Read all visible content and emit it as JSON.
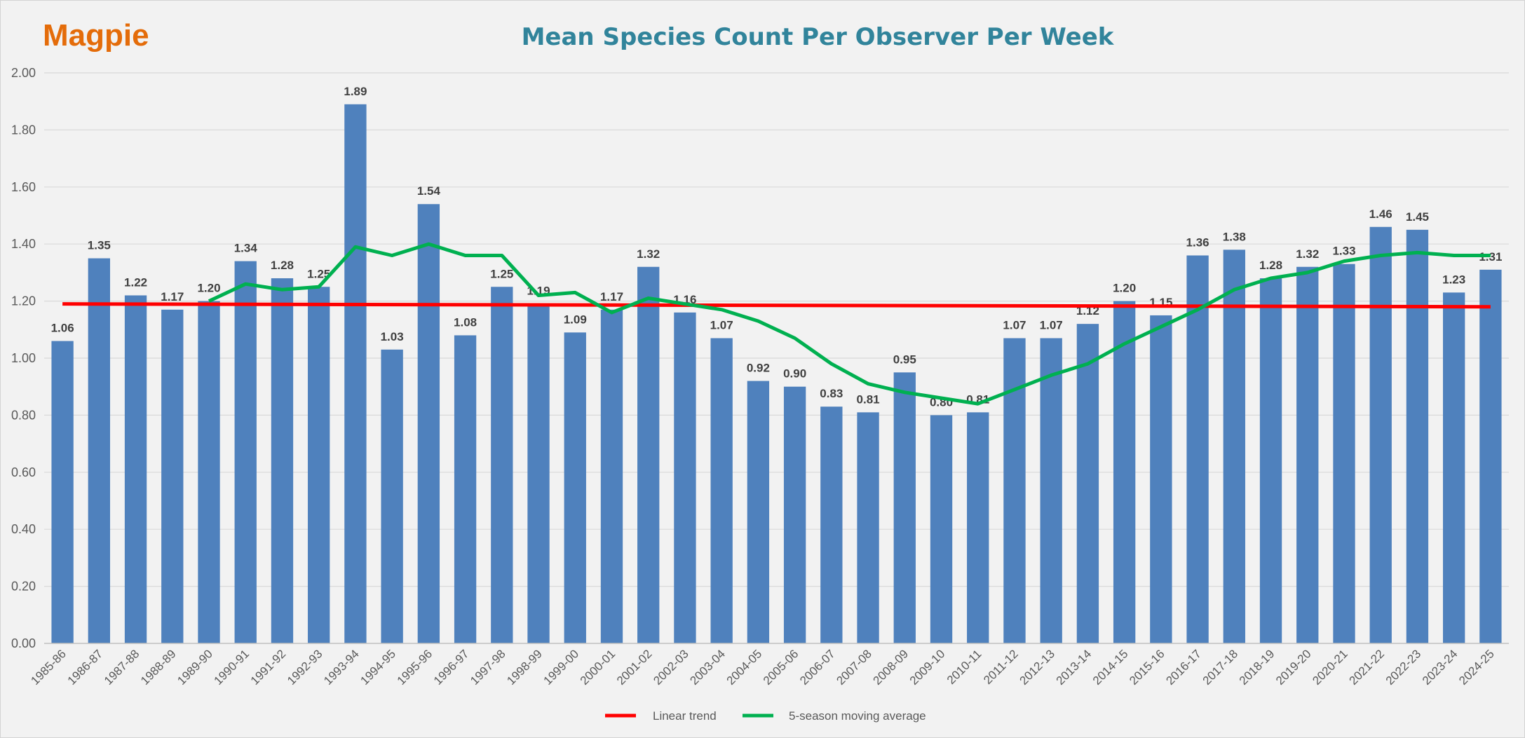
{
  "species_label": "Magpie",
  "chart_data": {
    "type": "bar",
    "title": "Mean Species Count Per Observer Per Week",
    "xlabel": "",
    "ylabel": "",
    "ylim": [
      0,
      2
    ],
    "ytick_step": 0.2,
    "grid": true,
    "legend_position": "bottom-center",
    "categories": [
      "1985-86",
      "1986-87",
      "1987-88",
      "1988-89",
      "1989-90",
      "1990-91",
      "1991-92",
      "1992-93",
      "1993-94",
      "1994-95",
      "1995-96",
      "1996-97",
      "1997-98",
      "1998-99",
      "1999-00",
      "2000-01",
      "2001-02",
      "2002-03",
      "2003-04",
      "2004-05",
      "2005-06",
      "2006-07",
      "2007-08",
      "2008-09",
      "2009-10",
      "2010-11",
      "2011-12",
      "2012-13",
      "2013-14",
      "2014-15",
      "2015-16",
      "2016-17",
      "2017-18",
      "2018-19",
      "2019-20",
      "2020-21",
      "2021-22",
      "2022-23",
      "2023-24",
      "2024-25"
    ],
    "values": [
      1.06,
      1.35,
      1.22,
      1.17,
      1.2,
      1.34,
      1.28,
      1.25,
      1.89,
      1.03,
      1.54,
      1.08,
      1.25,
      1.19,
      1.09,
      1.17,
      1.32,
      1.16,
      1.07,
      0.92,
      0.9,
      0.83,
      0.81,
      0.95,
      0.8,
      0.81,
      1.07,
      1.07,
      1.12,
      1.2,
      1.15,
      1.36,
      1.38,
      1.28,
      1.32,
      1.33,
      1.46,
      1.45,
      1.23,
      1.31
    ],
    "bar_color": "#4f81bd",
    "lines": [
      {
        "name": "Linear trend",
        "color": "#ff0000",
        "start": 1.19,
        "end": 1.18
      },
      {
        "name": "5-season moving average",
        "color": "#00b050",
        "values": [
          null,
          null,
          null,
          null,
          1.2,
          1.26,
          1.24,
          1.25,
          1.39,
          1.36,
          1.4,
          1.36,
          1.36,
          1.22,
          1.23,
          1.16,
          1.21,
          1.19,
          1.17,
          1.13,
          1.07,
          0.98,
          0.91,
          0.88,
          0.86,
          0.84,
          0.89,
          0.94,
          0.98,
          1.05,
          1.11,
          1.17,
          1.24,
          1.28,
          1.3,
          1.34,
          1.36,
          1.37,
          1.36,
          1.36
        ]
      }
    ]
  }
}
